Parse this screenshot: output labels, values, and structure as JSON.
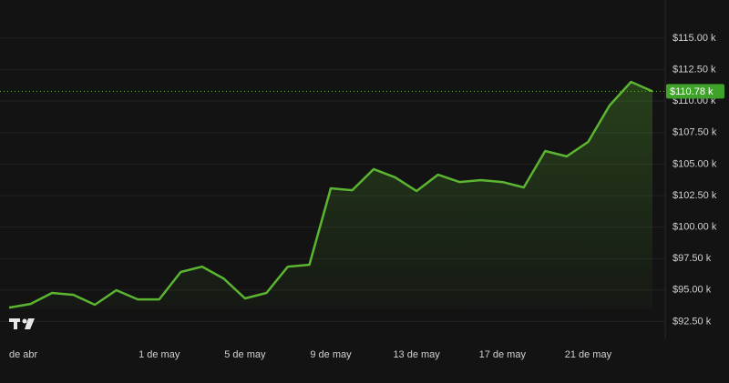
{
  "chart_data": {
    "type": "area",
    "categories": [
      "de abr",
      null,
      null,
      null,
      null,
      null,
      null,
      "1 de may",
      null,
      null,
      null,
      "5 de may",
      null,
      null,
      null,
      "9 de may",
      null,
      null,
      null,
      "13 de may",
      null,
      null,
      null,
      "17 de may",
      null,
      null,
      null,
      "21 de may",
      null,
      null,
      null
    ],
    "series": [
      {
        "color": "#5cb531",
        "values": [
          93610,
          93900,
          94770,
          94620,
          93830,
          94990,
          94260,
          94260,
          96430,
          96860,
          95920,
          94340,
          94770,
          96860,
          97010,
          103080,
          102930,
          104600,
          103950,
          102860,
          104160,
          103580,
          103730,
          103580,
          103150,
          106040,
          105610,
          106760,
          109650,
          111530,
          110780
        ]
      }
    ],
    "ylim": [
      91160,
      118030
    ],
    "yticks": [
      {
        "value": 92500,
        "label": "$92.50 k"
      },
      {
        "value": 95000,
        "label": "$95.00 k"
      },
      {
        "value": 97500,
        "label": "$97.50 k"
      },
      {
        "value": 100000,
        "label": "$100.00 k"
      },
      {
        "value": 102500,
        "label": "$102.50 k"
      },
      {
        "value": 105000,
        "label": "$105.00 k"
      },
      {
        "value": 107500,
        "label": "$107.50 k"
      },
      {
        "value": 110000,
        "label": "$110.00 k"
      },
      {
        "value": 112500,
        "label": "$112.50 k"
      },
      {
        "value": 115000,
        "label": "$115.00 k"
      }
    ],
    "current_price": {
      "value": 110780,
      "label": "$110.78 k"
    },
    "grid": true
  }
}
